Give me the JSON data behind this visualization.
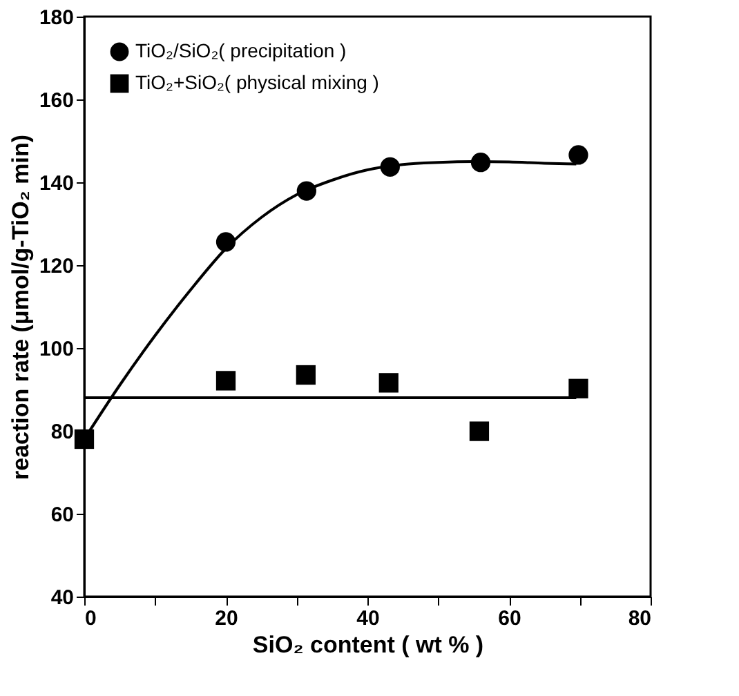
{
  "chart_data": {
    "type": "scatter",
    "xlabel": "SiO₂ content ( wt % )",
    "ylabel": "reaction rate (μmol/g-TiO₂ min)",
    "xlim": [
      0,
      80
    ],
    "ylim": [
      40,
      180
    ],
    "xticks": [
      0,
      {
        "value": 10,
        "label": null
      },
      20,
      {
        "value": 30,
        "label": null
      },
      40,
      {
        "value": 50,
        "label": null
      },
      60,
      {
        "value": 70,
        "label": null
      },
      80
    ],
    "yticks": [
      40,
      60,
      80,
      100,
      120,
      140,
      160,
      180
    ],
    "grid": false,
    "legend": "top left",
    "series": [
      {
        "name": "TiO₂/SiO₂( precipitation )",
        "color": "#000000",
        "marker": "circle",
        "x": [
          20,
          31.4,
          43.2,
          56,
          69.8
        ],
        "values": [
          125.6,
          137.9,
          143.7,
          144.8,
          146.6
        ]
      },
      {
        "name": "TiO₂+SiO₂( physical mixing )",
        "color": "#000000",
        "marker": "square",
        "x": [
          0,
          20,
          31.3,
          43,
          55.8,
          69.8
        ],
        "values": [
          78,
          92.1,
          93.5,
          91.6,
          79.9,
          90.2
        ]
      },
      {
        "type": "line",
        "color": "#000000",
        "x": [
          0,
          5,
          10,
          15,
          20,
          25,
          30,
          35,
          40,
          45,
          50,
          55,
          60,
          65,
          69.5
        ],
        "values": [
          78,
          91,
          103,
          114,
          124,
          131.5,
          137,
          140.5,
          143,
          144.3,
          144.8,
          145,
          144.9,
          144.6,
          144.4
        ]
      },
      {
        "type": "line",
        "color": "#000000",
        "x": [
          0,
          69.5
        ],
        "values": [
          88,
          88
        ]
      }
    ]
  }
}
